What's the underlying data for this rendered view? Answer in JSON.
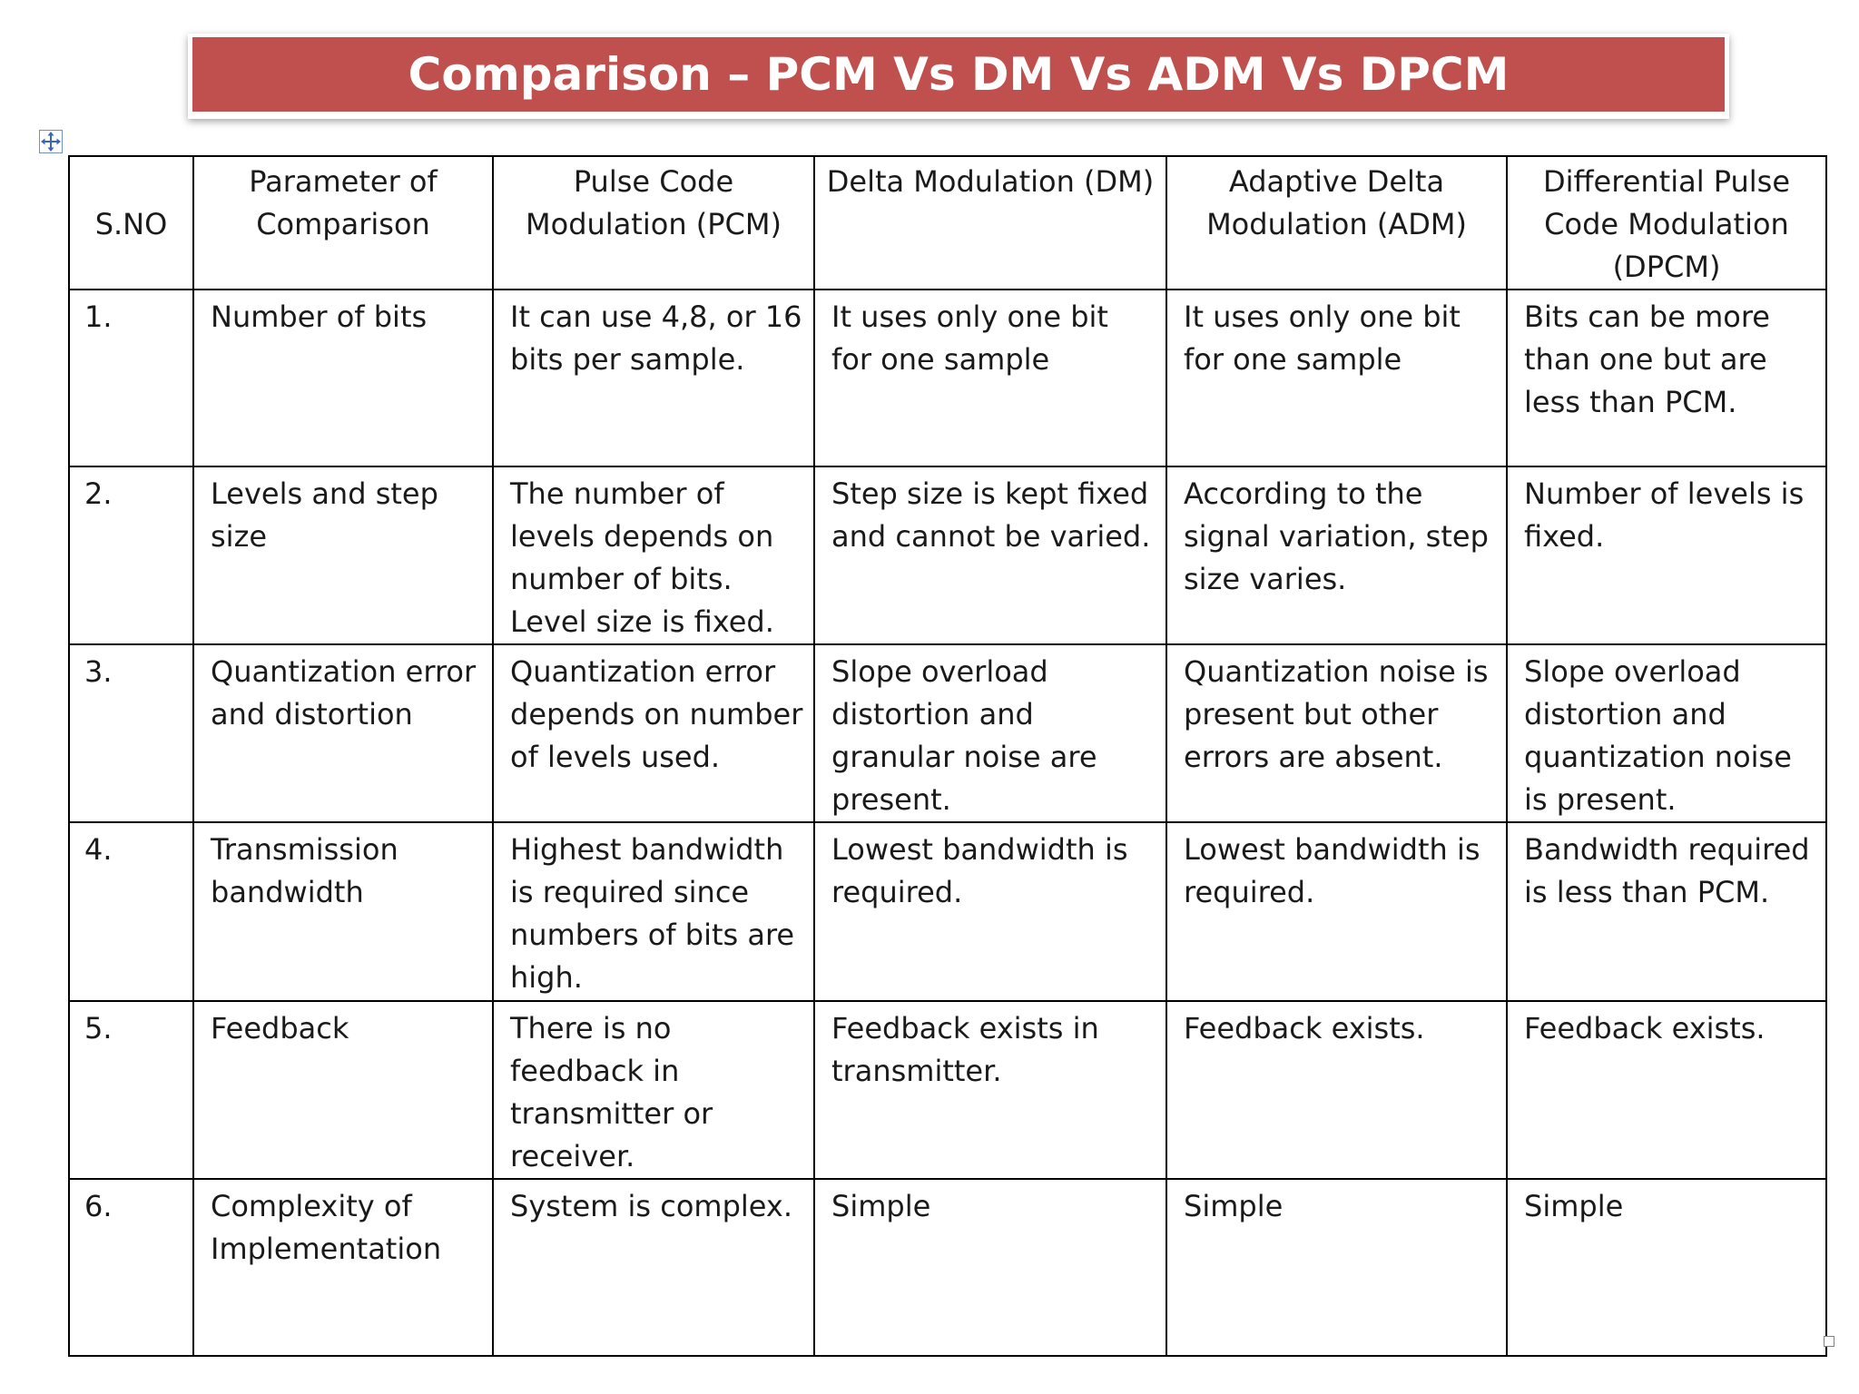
{
  "title": "Comparison – PCM Vs DM Vs ADM Vs DPCM",
  "colors": {
    "banner": "#c0504d",
    "banner_text": "#ffffff"
  },
  "icons": {
    "move_handle": "move-arrows-icon",
    "resize_handle": "resize-handle-icon"
  },
  "table": {
    "headers": [
      "S.NO",
      "Parameter of Comparison",
      "Pulse Code Modulation (PCM)",
      "Delta Modulation (DM)",
      "Adaptive Delta Modulation (ADM)",
      "Differential Pulse Code Modulation (DPCM)"
    ],
    "rows": [
      [
        "1.",
        "Number of bits",
        "It can use 4,8, or 16 bits per sample.",
        "It uses only one bit for one sample",
        "It uses only one bit for one sample",
        "Bits can be more than one but are less than PCM."
      ],
      [
        "2.",
        "Levels and step size",
        "The number of levels depends on number of bits. Level size is fixed.",
        "Step size is kept fixed and cannot be varied.",
        "According to the signal variation, step size varies.",
        "Number of levels is fixed."
      ],
      [
        "3.",
        "Quantization error and distortion",
        "Quantization error depends on number of levels used.",
        "Slope overload distortion and granular noise are present.",
        "Quantization noise is present but other errors are absent.",
        "Slope overload distortion and quantization noise is present."
      ],
      [
        "4.",
        "Transmission bandwidth",
        "Highest bandwidth is required since numbers of bits are high.",
        "Lowest bandwidth is required.",
        "Lowest bandwidth is required.",
        "Bandwidth required is less than PCM."
      ],
      [
        "5.",
        "Feedback",
        "There is no feedback in transmitter or receiver.",
        "Feedback exists in transmitter.",
        "Feedback exists.",
        "Feedback exists."
      ],
      [
        "6.",
        "Complexity of Implementation",
        "System is complex.",
        "Simple",
        "Simple",
        "Simple"
      ]
    ]
  }
}
